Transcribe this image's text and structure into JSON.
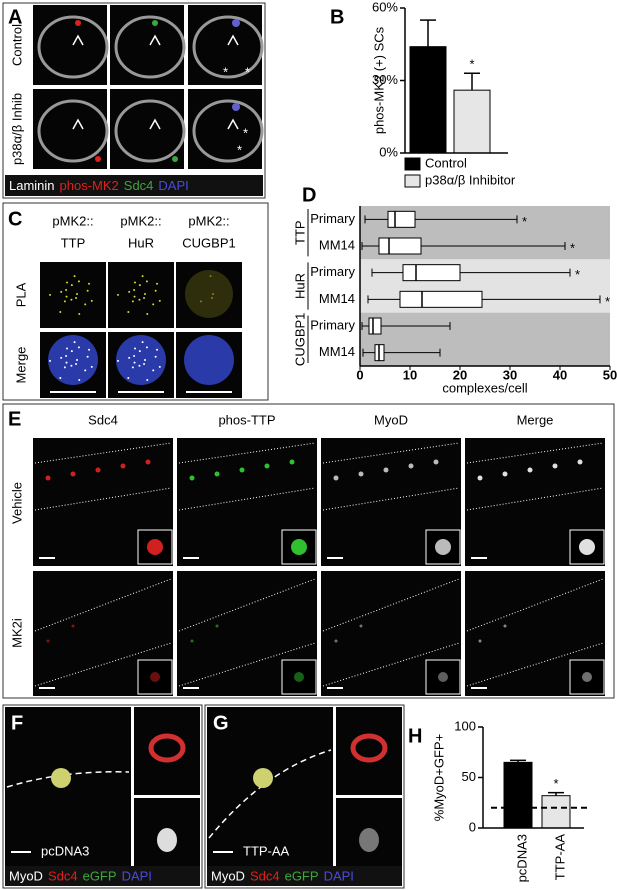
{
  "panels": {
    "A": {
      "letter": "A",
      "row_labels": [
        "Control",
        "p38α/β Inhib"
      ],
      "marks": [
        "*",
        "*",
        "*",
        "*"
      ],
      "stains": [
        {
          "text": "Laminin",
          "color": "#ffffff"
        },
        {
          "text": "phos-MK2",
          "color": "#e0201c"
        },
        {
          "text": "Sdc4",
          "color": "#3aa83a"
        },
        {
          "text": "DAPI",
          "color": "#4a4ae0"
        }
      ]
    },
    "C": {
      "letter": "C",
      "columns": [
        {
          "prefix": "pMK2::",
          "target": "TTP"
        },
        {
          "prefix": "pMK2::",
          "target": "HuR"
        },
        {
          "prefix": "pMK2::",
          "target": "CUGBP1"
        }
      ],
      "row_labels": [
        "PLA",
        "Merge"
      ]
    },
    "E": {
      "letter": "E",
      "column_labels": [
        "Sdc4",
        "phos-TTP",
        "MyoD",
        "Merge"
      ],
      "row_labels": [
        "Vehicle",
        "MK2i"
      ]
    },
    "F": {
      "letter": "F",
      "condition": "pcDNA3",
      "stains": [
        {
          "text": "MyoD",
          "color": "#ffffff"
        },
        {
          "text": "Sdc4",
          "color": "#e0201c"
        },
        {
          "text": "eGFP",
          "color": "#3aa83a"
        },
        {
          "text": "DAPI",
          "color": "#4a4ae0"
        }
      ]
    },
    "G": {
      "letter": "G",
      "condition": "TTP-AA",
      "stains": [
        {
          "text": "MyoD",
          "color": "#ffffff"
        },
        {
          "text": "Sdc4",
          "color": "#e0201c"
        },
        {
          "text": "eGFP",
          "color": "#3aa83a"
        },
        {
          "text": "DAPI",
          "color": "#4a4ae0"
        }
      ]
    }
  },
  "chart_data": [
    {
      "panel": "B",
      "type": "bar",
      "ylabel": "phos-MK2 (+) SCs",
      "categories": [
        "Control",
        "p38α/β Inhibitor"
      ],
      "values": [
        44,
        26
      ],
      "errors": [
        11,
        7
      ],
      "colors": [
        "#000000",
        "#e6e6e6"
      ],
      "significance": [
        null,
        "*"
      ],
      "ylim": [
        0,
        60
      ],
      "yticks": [
        {
          "value": 0,
          "label": "0%"
        },
        {
          "value": 30,
          "label": "30%"
        },
        {
          "value": 60,
          "label": "60%"
        }
      ]
    },
    {
      "panel": "D",
      "type": "box",
      "xlabel": "complexes/cell",
      "xlim": [
        0,
        50
      ],
      "xticks": [
        0,
        10,
        20,
        30,
        40,
        50
      ],
      "groups": [
        {
          "name": "TTP",
          "color": "#bdbdbd",
          "categories": [
            "Primary",
            "MM14"
          ],
          "significance": [
            "*",
            "*"
          ],
          "boxes": [
            {
              "min": 1,
              "q1": 5.6,
              "median": 7,
              "q3": 11,
              "max": 31.4
            },
            {
              "min": 0.4,
              "q1": 3.8,
              "median": 5.8,
              "q3": 12.2,
              "max": 41
            }
          ]
        },
        {
          "name": "HuR",
          "color": "#e3e3e3",
          "categories": [
            "Primary",
            "MM14"
          ],
          "significance": [
            "*",
            "*"
          ],
          "boxes": [
            {
              "min": 2.4,
              "q1": 8.6,
              "median": 11.2,
              "q3": 20,
              "max": 42
            },
            {
              "min": 1.6,
              "q1": 8,
              "median": 12.4,
              "q3": 24.4,
              "max": 48
            }
          ]
        },
        {
          "name": "CUGBP1",
          "color": "#bdbdbd",
          "categories": [
            "Primary",
            "MM14"
          ],
          "significance": [
            null,
            null
          ],
          "boxes": [
            {
              "min": 0.4,
              "q1": 1.8,
              "median": 2.6,
              "q3": 4.2,
              "max": 18
            },
            {
              "min": 0.6,
              "q1": 3,
              "median": 3.8,
              "q3": 4.8,
              "max": 16
            }
          ]
        }
      ]
    },
    {
      "panel": "H",
      "type": "bar",
      "ylabel": "%MyoD+GFP+",
      "categories": [
        "pcDNA3",
        "TTP-AA"
      ],
      "values": [
        65,
        32
      ],
      "errors": [
        2,
        3
      ],
      "colors": [
        "#000000",
        "#e6e6e6"
      ],
      "significance": [
        null,
        "*"
      ],
      "reference_line": 20,
      "ylim": [
        0,
        100
      ],
      "yticks": [
        0,
        50,
        100
      ]
    }
  ]
}
